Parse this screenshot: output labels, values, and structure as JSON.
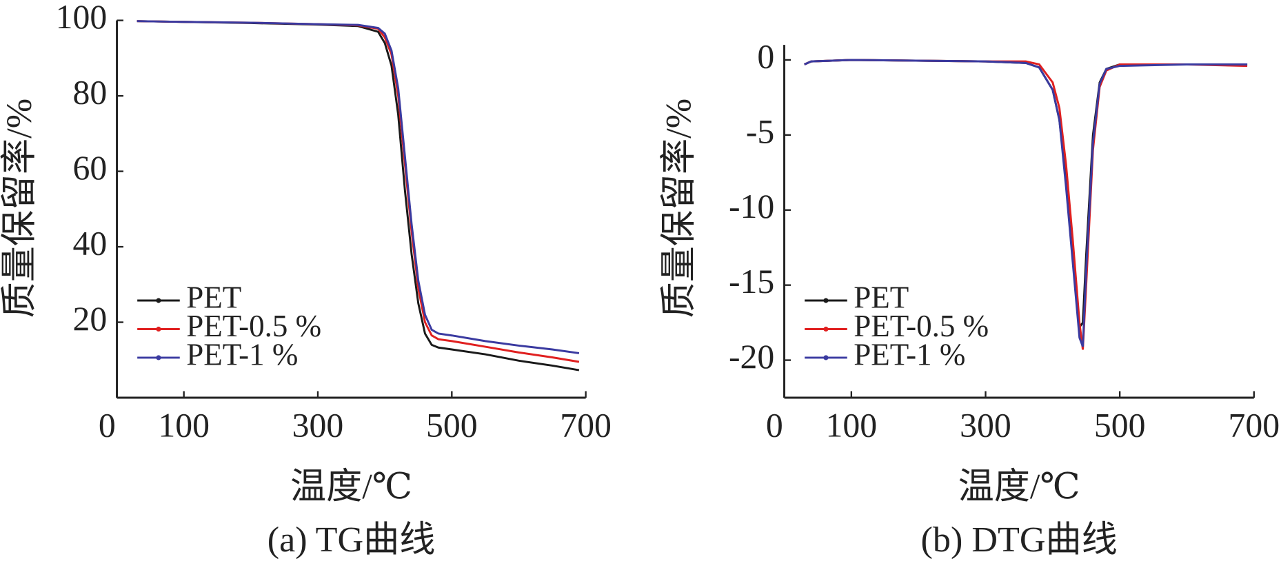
{
  "chart_data": [
    {
      "type": "line",
      "caption": "(a) TG曲线",
      "xlabel": "温度/℃",
      "ylabel": "质量保留率/%",
      "xlim": [
        0,
        700
      ],
      "xticks": [
        0,
        100,
        300,
        500,
        700
      ],
      "ylim": [
        0,
        100
      ],
      "yticks": [
        20,
        40,
        60,
        80,
        100
      ],
      "x": [
        30,
        100,
        200,
        300,
        360,
        390,
        400,
        410,
        420,
        430,
        440,
        450,
        460,
        470,
        480,
        500,
        550,
        600,
        650,
        690
      ],
      "series": [
        {
          "name": "PET",
          "color": "#1a1a1a",
          "values": [
            99.8,
            99.6,
            99.3,
            98.9,
            98.5,
            97,
            94,
            88,
            75,
            55,
            38,
            25,
            17,
            14,
            13.3,
            12.8,
            11.5,
            9.8,
            8.5,
            7.3
          ]
        },
        {
          "name": "PET-0.5 %",
          "color": "#e02020",
          "values": [
            99.8,
            99.6,
            99.4,
            99,
            98.7,
            97.8,
            95.5,
            91,
            80,
            62,
            44,
            29,
            20,
            16.5,
            15.5,
            15,
            13.5,
            12,
            10.7,
            9.5
          ]
        },
        {
          "name": "PET-1 %",
          "color": "#3a3aa0",
          "values": [
            99.8,
            99.6,
            99.4,
            99,
            98.8,
            98,
            96.5,
            92,
            82,
            64,
            46,
            31,
            22,
            18,
            17,
            16.5,
            15,
            13.8,
            12.8,
            11.8
          ]
        }
      ]
    },
    {
      "type": "line",
      "caption": "(b) DTG曲线",
      "xlabel": "温度/℃",
      "ylabel": "质量保留率/%",
      "xlim": [
        0,
        700
      ],
      "xticks": [
        0,
        100,
        300,
        500,
        700
      ],
      "ylim": [
        -22.5,
        1
      ],
      "yticks": [
        -20,
        -15,
        -10,
        -5,
        0
      ],
      "x": [
        30,
        40,
        100,
        300,
        360,
        380,
        400,
        410,
        420,
        430,
        440,
        445,
        450,
        460,
        470,
        480,
        500,
        600,
        690
      ],
      "series": [
        {
          "name": "PET",
          "color": "#1a1a1a",
          "values": [
            -0.3,
            -0.1,
            0,
            -0.1,
            -0.2,
            -0.5,
            -2,
            -4,
            -8,
            -13,
            -17.8,
            -17.5,
            -13,
            -5,
            -1.5,
            -0.6,
            -0.3,
            -0.3,
            -0.3
          ]
        },
        {
          "name": "PET-0.5 %",
          "color": "#e02020",
          "values": [
            -0.3,
            -0.1,
            0,
            -0.1,
            -0.1,
            -0.3,
            -1.5,
            -3.2,
            -7,
            -12,
            -17.5,
            -19.3,
            -15,
            -6,
            -1.8,
            -0.7,
            -0.3,
            -0.3,
            -0.4
          ]
        },
        {
          "name": "PET-1 %",
          "color": "#3a3aa0",
          "values": [
            -0.3,
            -0.1,
            0,
            -0.1,
            -0.2,
            -0.5,
            -2,
            -4,
            -8.5,
            -13.5,
            -18.5,
            -19.1,
            -14,
            -5.5,
            -1.6,
            -0.6,
            -0.4,
            -0.3,
            -0.3
          ]
        }
      ]
    }
  ]
}
